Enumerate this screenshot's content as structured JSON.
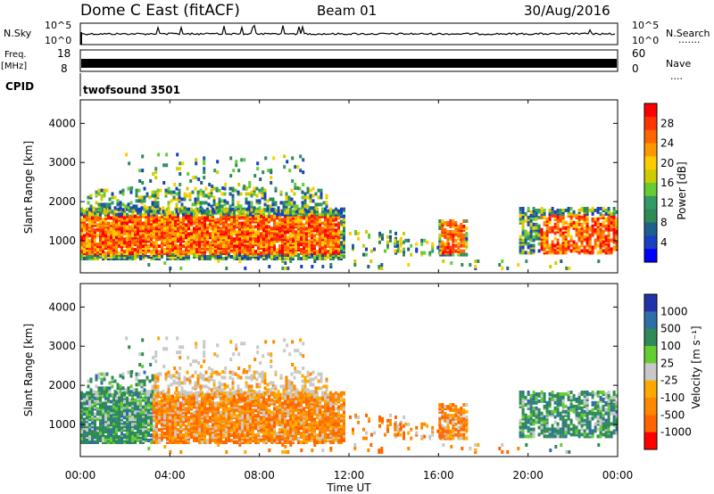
{
  "header": {
    "station": "Dome C East (fitACF)",
    "beam": "Beam 01",
    "date": "30/Aug/2016"
  },
  "nsky_panel": {
    "label": "N.Sky",
    "right_label": "N.Search",
    "left_ticks": [
      "10^5",
      "10^0"
    ],
    "right_ticks": [
      "10^5",
      "10^0"
    ],
    "dots": "......."
  },
  "freq_panel": {
    "label_line1": "Freq.",
    "label_line2": "[MHz]",
    "left_ticks": [
      "18",
      "8"
    ],
    "right_ticks": [
      "60",
      "0"
    ],
    "right_label": "Nave",
    "dots": "...."
  },
  "cpid": {
    "label": "CPID",
    "program": "twofsound 3501"
  },
  "time_axis": {
    "label": "Time UT",
    "ticks": [
      "00:00",
      "04:00",
      "08:00",
      "12:00",
      "16:00",
      "20:00",
      "00:00"
    ]
  },
  "chart_data": [
    {
      "type": "heatmap",
      "name": "power",
      "ylabel": "Slant Range [km]",
      "y_ticks": [
        1000,
        2000,
        3000,
        4000
      ],
      "ylim": [
        180,
        4600
      ],
      "xlim_hours": [
        0,
        24
      ],
      "colorbar": {
        "label": "Power [dB]",
        "ticks": [
          "28",
          "24",
          "20",
          "16",
          "12",
          "8",
          "4"
        ],
        "colors": [
          "#ff0000",
          "#ff3300",
          "#ff6600",
          "#ff9900",
          "#ffcc00",
          "#cccc00",
          "#66cc33",
          "#339966",
          "#2e8b57",
          "#1f5f8b",
          "#1a3fbf",
          "#0000ff"
        ]
      }
    },
    {
      "type": "heatmap",
      "name": "velocity",
      "ylabel": "Slant Range [km]",
      "y_ticks": [
        1000,
        2000,
        3000,
        4000
      ],
      "ylim": [
        180,
        4600
      ],
      "xlim_hours": [
        0,
        24
      ],
      "colorbar": {
        "label": "Velocity [m s⁻¹]",
        "ticks": [
          "1000",
          "500",
          "100",
          "25",
          "-25",
          "-100",
          "-500",
          "-1000"
        ],
        "colors": [
          "#2233aa",
          "#2e6fa8",
          "#2e8b57",
          "#66cc33",
          "#c8c8c8",
          "#ffaa00",
          "#ff8800",
          "#ff6600",
          "#ff0000"
        ]
      }
    }
  ]
}
